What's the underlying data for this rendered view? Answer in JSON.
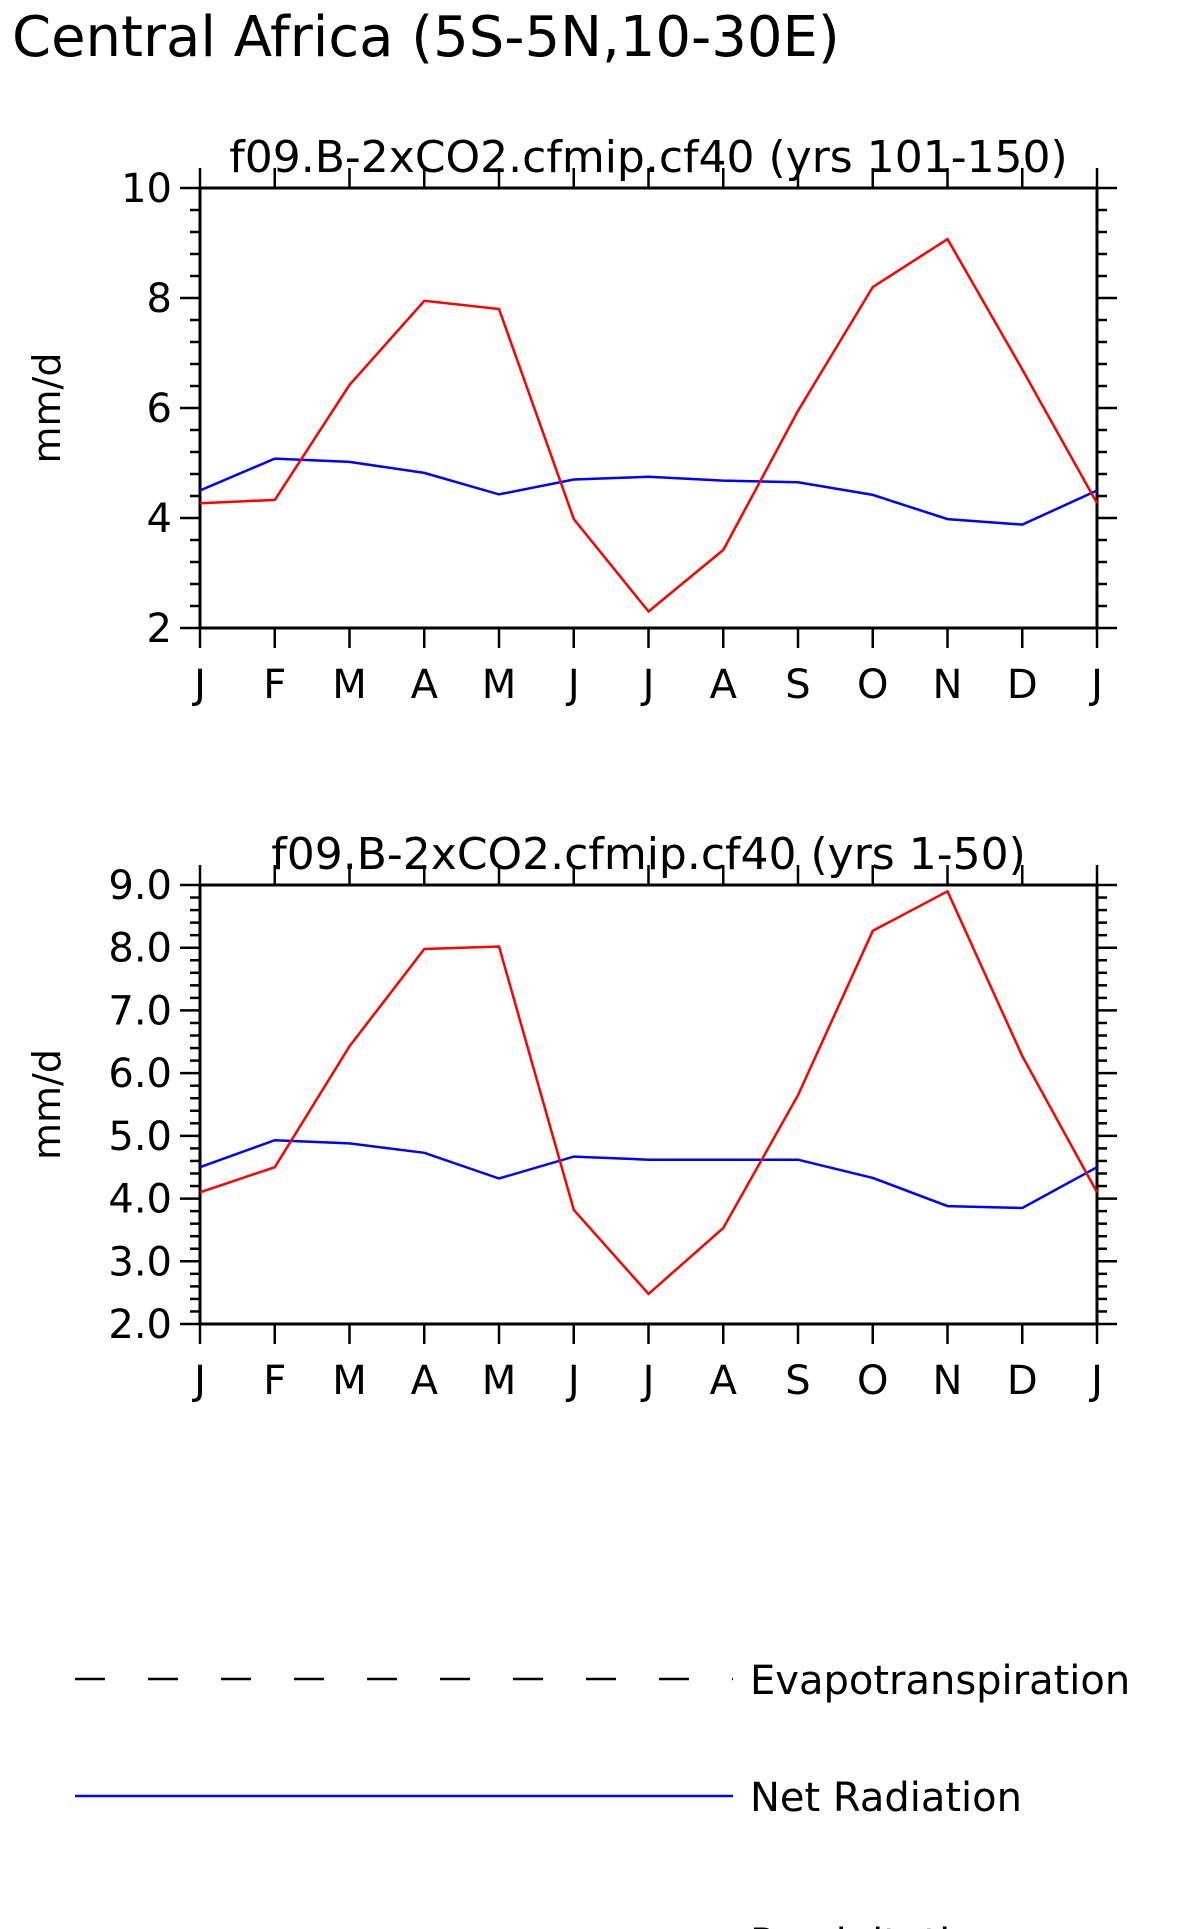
{
  "figure": {
    "title": "Central Africa (5S-5N,10-30E)"
  },
  "legend": {
    "placement": "bottom",
    "items": [
      {
        "label": "Evapotranspiration",
        "color": "#000000",
        "dashed": true
      },
      {
        "label": "Net Radiation",
        "color": "#0000ff",
        "dashed": false
      },
      {
        "label": "Precipitation",
        "color": "#ff0000",
        "dashed": false
      }
    ]
  },
  "chart_data": [
    {
      "type": "line",
      "title": "f09.B-2xCO2.cfmip.cf40 (yrs 101-150)",
      "xlabel": "",
      "ylabel": "mm/d",
      "categories": [
        "J",
        "F",
        "M",
        "A",
        "M",
        "J",
        "J",
        "A",
        "S",
        "O",
        "N",
        "D",
        "J"
      ],
      "ylim": [
        2,
        10
      ],
      "yticks": [
        2,
        4,
        6,
        8,
        10
      ],
      "ytick_labels": [
        "2",
        "4",
        "6",
        "8",
        "10"
      ],
      "grid": false,
      "series": [
        {
          "name": "Net Radiation",
          "color": "#0000ff",
          "values": [
            4.5,
            5.08,
            5.02,
            4.82,
            4.43,
            4.7,
            4.75,
            4.68,
            4.65,
            4.42,
            3.98,
            3.88,
            4.5
          ]
        },
        {
          "name": "Precipitation",
          "color": "#ff0000",
          "values": [
            4.27,
            4.33,
            6.42,
            7.95,
            7.8,
            3.98,
            2.3,
            3.42,
            5.95,
            8.2,
            9.07,
            6.7,
            4.27
          ]
        }
      ]
    },
    {
      "type": "line",
      "title": "f09.B-2xCO2.cfmip.cf40 (yrs 1-50)",
      "xlabel": "",
      "ylabel": "mm/d",
      "categories": [
        "J",
        "F",
        "M",
        "A",
        "M",
        "J",
        "J",
        "A",
        "S",
        "O",
        "N",
        "D",
        "J"
      ],
      "ylim": [
        2,
        9
      ],
      "yticks": [
        2,
        3,
        4,
        5,
        6,
        7,
        8,
        9
      ],
      "ytick_labels": [
        "2.0",
        "3.0",
        "4.0",
        "5.0",
        "6.0",
        "7.0",
        "8.0",
        "9.0"
      ],
      "grid": false,
      "series": [
        {
          "name": "Net Radiation",
          "color": "#0000ff",
          "values": [
            4.5,
            4.93,
            4.88,
            4.73,
            4.32,
            4.67,
            4.62,
            4.62,
            4.62,
            4.33,
            3.88,
            3.85,
            4.5
          ]
        },
        {
          "name": "Precipitation",
          "color": "#ff0000",
          "values": [
            4.1,
            4.5,
            6.43,
            7.98,
            8.02,
            3.82,
            2.48,
            3.53,
            5.65,
            8.27,
            8.9,
            6.27,
            4.1
          ]
        }
      ]
    }
  ]
}
